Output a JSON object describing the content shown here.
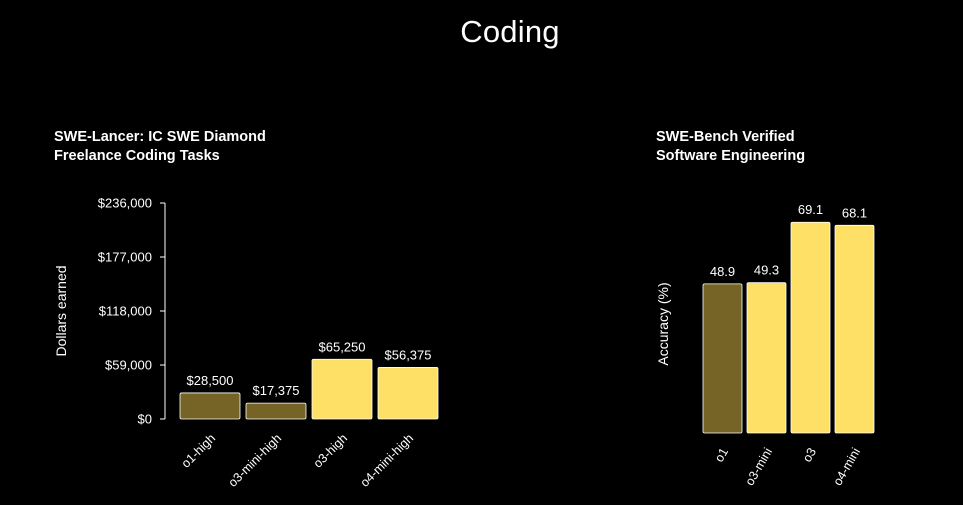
{
  "page": {
    "title": "Coding"
  },
  "colors": {
    "background": "#000000",
    "dark_bar": "#766427",
    "light_bar": "#FFE066",
    "text": "#ffffff"
  },
  "chart_data": [
    {
      "type": "bar",
      "title": [
        "SWE-Lancer: IC SWE Diamond",
        "Freelance Coding Tasks"
      ],
      "ylabel": "Dollars earned",
      "ylim": [
        0,
        236000
      ],
      "yticks": [
        0,
        59000,
        118000,
        177000,
        236000
      ],
      "ytick_labels": [
        "$0",
        "$59,000",
        "$118,000",
        "$177,000",
        "$236,000"
      ],
      "categories": [
        "o1-high",
        "o3-mini-high",
        "o3-high",
        "o4-mini-high"
      ],
      "values": [
        28500,
        17375,
        65250,
        56375
      ],
      "value_labels": [
        "$28,500",
        "$17,375",
        "$65,250",
        "$56,375"
      ],
      "bar_colors": [
        "#766427",
        "#766427",
        "#FFE066",
        "#FFE066"
      ]
    },
    {
      "type": "bar",
      "title": [
        "SWE-Bench Verified",
        "Software Engineering"
      ],
      "ylabel": "Accuracy (%)",
      "ylim": [
        0,
        100
      ],
      "categories": [
        "o1",
        "o3-mini",
        "o3",
        "o4-mini"
      ],
      "values": [
        48.9,
        49.3,
        69.1,
        68.1
      ],
      "value_labels": [
        "48.9",
        "49.3",
        "69.1",
        "68.1"
      ],
      "bar_colors": [
        "#766427",
        "#FFE066",
        "#FFE066",
        "#FFE066"
      ]
    }
  ]
}
